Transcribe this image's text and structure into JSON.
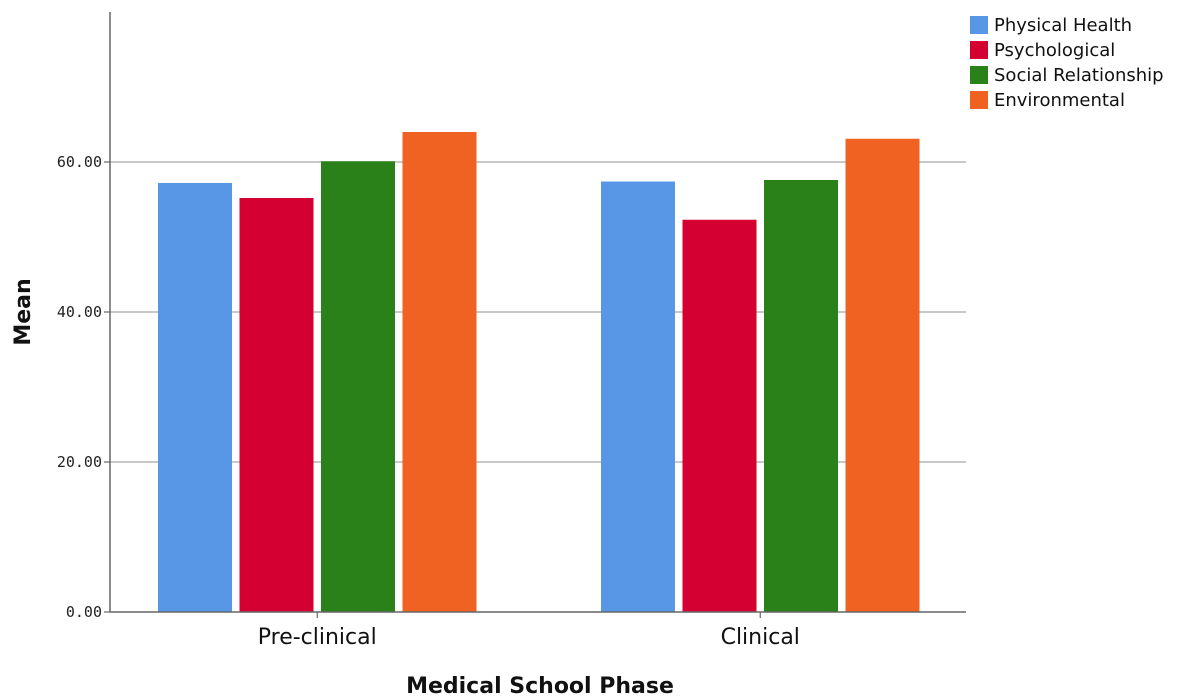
{
  "chart_data": {
    "type": "bar",
    "title": "",
    "xlabel": "Medical School Phase",
    "ylabel": "Mean",
    "categories": [
      "Pre-clinical",
      "Clinical"
    ],
    "ylim": [
      0,
      80
    ],
    "yticks": [
      "0.00",
      "20.00",
      "40.00",
      "60.00"
    ],
    "grid": true,
    "legend_position": "top-right",
    "series": [
      {
        "name": "Physical Health",
        "color": "#5897e6",
        "values": [
          57.2,
          57.4
        ]
      },
      {
        "name": "Psychological",
        "color": "#d50032",
        "values": [
          55.2,
          52.3
        ]
      },
      {
        "name": "Social Relationship",
        "color": "#2a8019",
        "values": [
          60.1,
          57.6
        ]
      },
      {
        "name": "Environmental",
        "color": "#f06221",
        "values": [
          64.0,
          63.1
        ]
      }
    ]
  }
}
